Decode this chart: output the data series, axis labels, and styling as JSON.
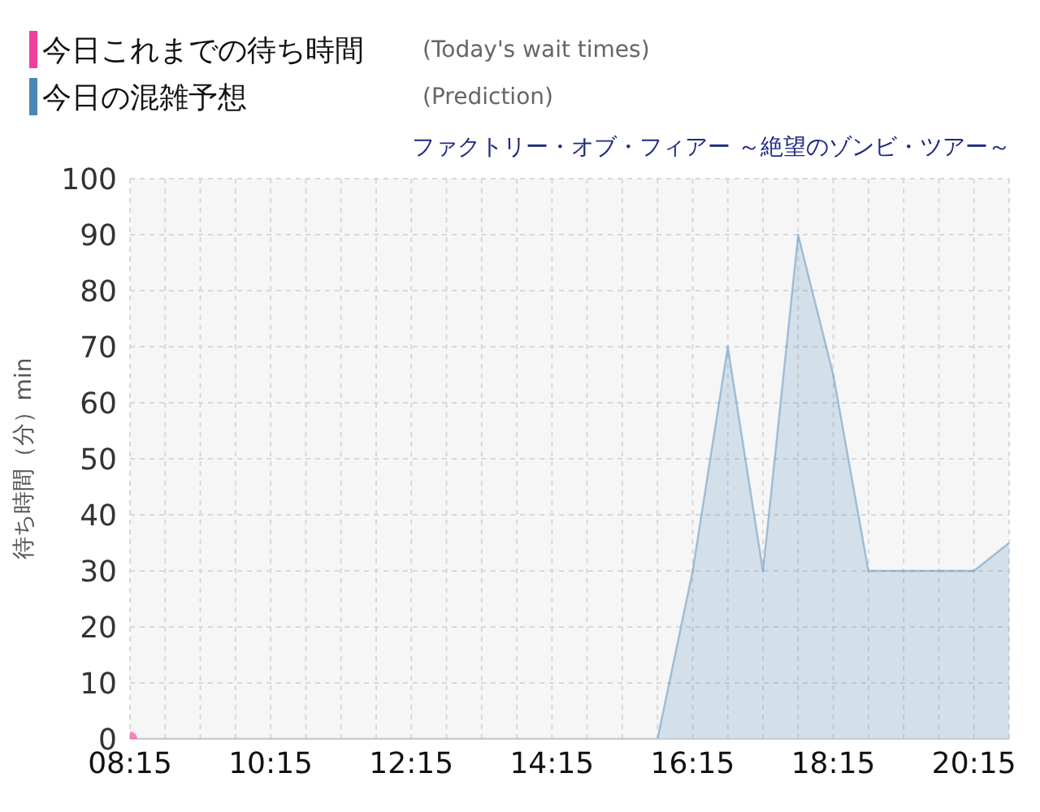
{
  "chart_data": {
    "type": "area",
    "subtitle": "ファクトリー・オブ・フィアー ～絶望のゾンビ・ツアー～",
    "ylabel": "待ち時間（分）min",
    "annotations": [
      "(Today's wait times)",
      "(Prediction)"
    ],
    "series": [
      {
        "name": "今日これまでの待ち時間",
        "type": "scatter",
        "marker": "circle",
        "color": "#f0409e",
        "x": [
          8.25
        ],
        "values": [
          0
        ]
      },
      {
        "name": "今日の混雑予想",
        "color": "#4a86b8",
        "x": [
          8.25,
          15.75,
          16.25,
          16.75,
          17.25,
          17.75,
          18.25,
          18.75,
          19.25,
          19.75,
          20.25,
          20.75
        ],
        "values": [
          0,
          0,
          30,
          70,
          30,
          90,
          65,
          30,
          30,
          30,
          30,
          35
        ]
      }
    ],
    "xlim": [
      8.25,
      20.75
    ],
    "xticks": [
      {
        "value": 8.25,
        "label": "08:15"
      },
      {
        "value": 8.75,
        "label": null
      },
      {
        "value": 9.25,
        "label": null
      },
      {
        "value": 9.75,
        "label": null
      },
      {
        "value": 10.25,
        "label": "10:15"
      },
      {
        "value": 10.75,
        "label": null
      },
      {
        "value": 11.25,
        "label": null
      },
      {
        "value": 11.75,
        "label": null
      },
      {
        "value": 12.25,
        "label": "12:15"
      },
      {
        "value": 12.75,
        "label": null
      },
      {
        "value": 13.25,
        "label": null
      },
      {
        "value": 13.75,
        "label": null
      },
      {
        "value": 14.25,
        "label": "14:15"
      },
      {
        "value": 14.75,
        "label": null
      },
      {
        "value": 15.25,
        "label": null
      },
      {
        "value": 15.75,
        "label": null
      },
      {
        "value": 16.25,
        "label": "16:15"
      },
      {
        "value": 16.75,
        "label": null
      },
      {
        "value": 17.25,
        "label": null
      },
      {
        "value": 17.75,
        "label": null
      },
      {
        "value": 18.25,
        "label": "18:15"
      },
      {
        "value": 18.75,
        "label": null
      },
      {
        "value": 19.25,
        "label": null
      },
      {
        "value": 19.75,
        "label": null
      },
      {
        "value": 20.25,
        "label": "20:15"
      },
      {
        "value": 20.75,
        "label": null
      }
    ],
    "ylim": [
      0,
      100
    ],
    "yticks": [
      0,
      10,
      20,
      30,
      40,
      50,
      60,
      70,
      80,
      90,
      100
    ],
    "grid": true,
    "legend": "top left"
  }
}
